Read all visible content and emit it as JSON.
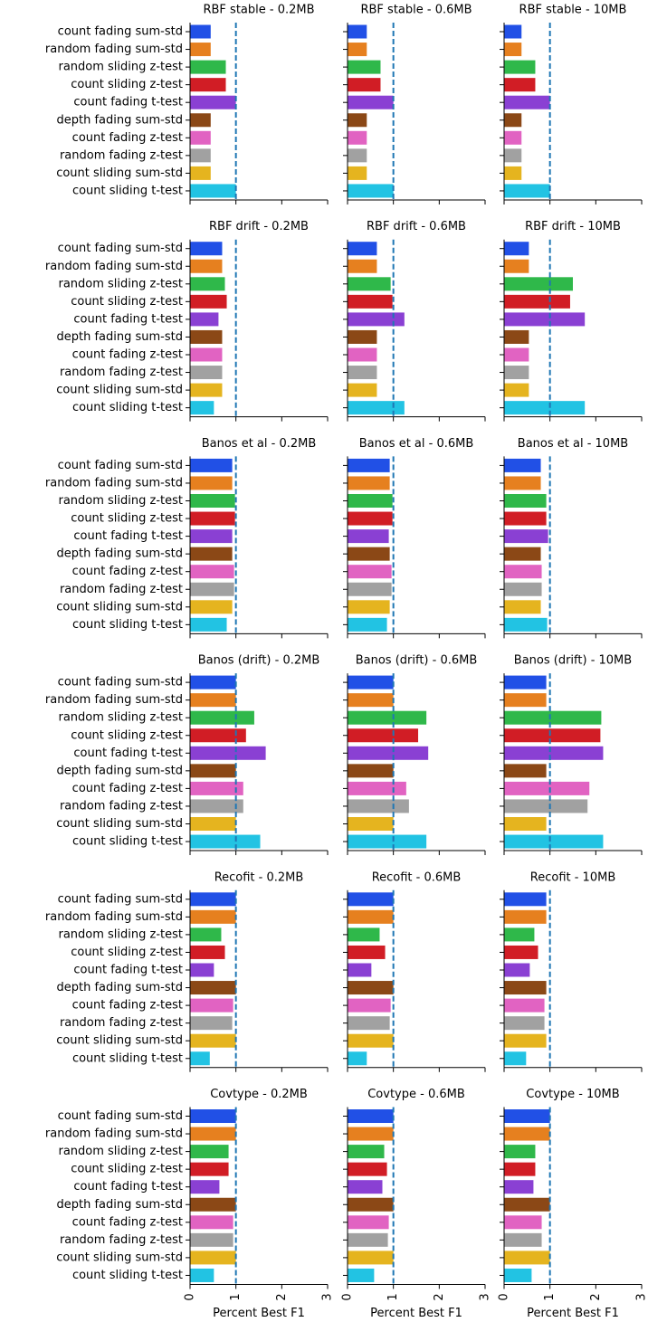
{
  "chart_data": {
    "type": "bar",
    "orientation": "horizontal",
    "categories": [
      "count fading sum-std",
      "random fading sum-std",
      "random sliding z-test",
      "count sliding z-test",
      "count fading t-test",
      "depth fading sum-std",
      "count fading z-test",
      "random fading z-test",
      "count sliding sum-std",
      "count sliding t-test"
    ],
    "colors": [
      "#2150e6",
      "#e6801f",
      "#2fb84a",
      "#d11d25",
      "#8a40d3",
      "#8b4816",
      "#e163c2",
      "#a1a1a1",
      "#e5b41f",
      "#22c3e3"
    ],
    "xlim": [
      0,
      3
    ],
    "xticks": [
      0,
      1,
      2,
      3
    ],
    "xlabel": "Percent Best F1",
    "reference_line": {
      "value": 1,
      "color": "#1f77b4",
      "style": "dashed"
    },
    "panels": [
      {
        "title": "RBF stable - 0.2MB",
        "values": [
          0.45,
          0.45,
          0.78,
          0.78,
          1.0,
          0.45,
          0.45,
          0.45,
          0.45,
          1.0
        ]
      },
      {
        "title": "RBF stable - 0.6MB",
        "values": [
          0.42,
          0.42,
          0.72,
          0.72,
          1.0,
          0.42,
          0.42,
          0.42,
          0.42,
          1.0
        ]
      },
      {
        "title": "RBF stable - 10MB",
        "values": [
          0.38,
          0.38,
          0.68,
          0.68,
          1.0,
          0.38,
          0.38,
          0.38,
          0.38,
          1.0
        ]
      },
      {
        "title": "RBF drift - 0.2MB",
        "values": [
          0.7,
          0.7,
          0.76,
          0.8,
          0.62,
          0.7,
          0.7,
          0.7,
          0.7,
          0.52
        ]
      },
      {
        "title": "RBF drift - 0.6MB",
        "values": [
          0.64,
          0.64,
          0.94,
          0.98,
          1.24,
          0.64,
          0.64,
          0.64,
          0.64,
          1.24
        ]
      },
      {
        "title": "RBF drift - 10MB",
        "values": [
          0.54,
          0.54,
          1.5,
          1.44,
          1.76,
          0.54,
          0.54,
          0.54,
          0.54,
          1.76
        ]
      },
      {
        "title": "Banos et al - 0.2MB",
        "values": [
          0.92,
          0.92,
          0.98,
          0.98,
          0.92,
          0.92,
          0.96,
          0.96,
          0.92,
          0.8
        ]
      },
      {
        "title": "Banos et al - 0.6MB",
        "values": [
          0.92,
          0.92,
          0.98,
          0.98,
          0.9,
          0.92,
          0.96,
          0.96,
          0.92,
          0.86
        ]
      },
      {
        "title": "Banos et al - 10MB",
        "values": [
          0.8,
          0.8,
          0.92,
          0.92,
          0.96,
          0.8,
          0.82,
          0.82,
          0.8,
          0.94
        ]
      },
      {
        "title": "Banos (drift) - 0.2MB",
        "values": [
          1.0,
          1.0,
          1.4,
          1.22,
          1.65,
          1.0,
          1.16,
          1.16,
          1.0,
          1.53
        ]
      },
      {
        "title": "Banos (drift) - 0.6MB",
        "values": [
          1.0,
          1.0,
          1.72,
          1.54,
          1.76,
          1.0,
          1.28,
          1.34,
          1.0,
          1.72
        ]
      },
      {
        "title": "Banos (drift) - 10MB",
        "values": [
          0.92,
          0.92,
          2.12,
          2.1,
          2.16,
          0.92,
          1.86,
          1.82,
          0.92,
          2.16
        ]
      },
      {
        "title": "Recofit - 0.2MB",
        "values": [
          1.0,
          1.0,
          0.68,
          0.76,
          0.52,
          1.0,
          0.94,
          0.92,
          1.0,
          0.43
        ]
      },
      {
        "title": "Recofit - 0.6MB",
        "values": [
          1.0,
          1.0,
          0.7,
          0.82,
          0.52,
          1.0,
          0.94,
          0.92,
          1.0,
          0.42
        ]
      },
      {
        "title": "Recofit - 10MB",
        "values": [
          0.92,
          0.92,
          0.66,
          0.74,
          0.56,
          0.92,
          0.88,
          0.88,
          0.92,
          0.48
        ]
      },
      {
        "title": "Covtype - 0.2MB",
        "values": [
          1.0,
          1.0,
          0.84,
          0.84,
          0.64,
          1.0,
          0.94,
          0.94,
          1.0,
          0.52
        ]
      },
      {
        "title": "Covtype - 0.6MB",
        "values": [
          1.0,
          1.0,
          0.8,
          0.86,
          0.76,
          1.0,
          0.9,
          0.88,
          1.0,
          0.58
        ]
      },
      {
        "title": "Covtype - 10MB",
        "values": [
          1.0,
          1.0,
          0.68,
          0.68,
          0.64,
          1.0,
          0.82,
          0.82,
          1.0,
          0.6
        ]
      }
    ]
  }
}
